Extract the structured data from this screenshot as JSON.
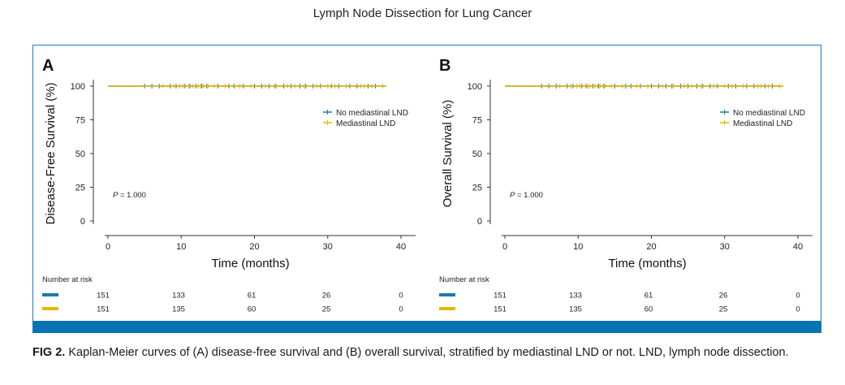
{
  "header": {
    "title": "Lymph Node Dissection for Lung Cancer"
  },
  "caption": {
    "label": "FIG 2.",
    "text": "Kaplan-Meier curves of (A) disease-free survival and (B) overall survival, stratified by mediastinal LND or not. LND, lymph node dissection."
  },
  "chart_data": [
    {
      "panel": "A",
      "type": "line",
      "xlabel": "Time (months)",
      "ylabel": "Disease-Free Survival (%)",
      "xlim": [
        0,
        40
      ],
      "ylim": [
        0,
        100
      ],
      "xticks": [
        0,
        10,
        20,
        30,
        40
      ],
      "yticks": [
        0,
        25,
        50,
        75,
        100
      ],
      "p_value": "= 1.000",
      "legend_position": "right",
      "series": [
        {
          "name": "No mediastinal LND",
          "color": "#1f77b4",
          "x": [
            0,
            38
          ],
          "y": [
            100,
            100
          ],
          "censor_times": [
            5,
            6,
            7,
            8.5,
            9.3,
            10.5,
            11.2,
            12,
            12.8,
            13.5,
            15,
            16.5,
            17.2,
            18.5,
            20,
            21,
            22,
            22.8,
            24,
            25,
            26.2,
            27,
            28,
            29,
            30.5,
            31.5,
            33,
            34,
            35.5,
            36.5
          ]
        },
        {
          "name": "Mediastinal LND",
          "color": "#e6b800",
          "x": [
            0,
            38
          ],
          "y": [
            100,
            100
          ],
          "censor_times": [
            7.5,
            9,
            9.8,
            10.2,
            11,
            11.6,
            12.3,
            12.7,
            13,
            13.7,
            14.5,
            16,
            18,
            19.5,
            21.5,
            23,
            24.5,
            25.5,
            26.8,
            28.5,
            30,
            31,
            32.5,
            34.5,
            35,
            36,
            37.5
          ]
        }
      ],
      "risk_table": {
        "header": "Number at risk",
        "times": [
          0,
          10,
          20,
          30,
          40
        ],
        "rows": [
          {
            "color": "#1f77b4",
            "values": [
              "151",
              "133",
              "61",
              "26",
              "0"
            ]
          },
          {
            "color": "#e6b800",
            "values": [
              "151",
              "135",
              "60",
              "25",
              "0"
            ]
          }
        ]
      }
    },
    {
      "panel": "B",
      "type": "line",
      "xlabel": "Time (months)",
      "ylabel": "Overall Survival (%)",
      "xlim": [
        0,
        40
      ],
      "ylim": [
        0,
        100
      ],
      "xticks": [
        0,
        10,
        20,
        30,
        40
      ],
      "yticks": [
        0,
        25,
        50,
        75,
        100
      ],
      "p_value": "= 1.000",
      "legend_position": "right",
      "series": [
        {
          "name": "No mediastinal LND",
          "color": "#1f77b4",
          "x": [
            0,
            38
          ],
          "y": [
            100,
            100
          ],
          "censor_times": [
            5,
            6,
            7,
            8.5,
            9.3,
            10.5,
            11.2,
            12,
            12.8,
            13.5,
            15,
            16.5,
            17.2,
            18.5,
            20,
            21,
            22,
            22.8,
            24,
            25,
            26.2,
            27,
            28,
            29,
            30.5,
            31.5,
            33,
            34,
            35.5,
            36.5
          ]
        },
        {
          "name": "Mediastinal LND",
          "color": "#e6b800",
          "x": [
            0,
            38
          ],
          "y": [
            100,
            100
          ],
          "censor_times": [
            7.5,
            9,
            9.8,
            10.2,
            11,
            11.6,
            12.3,
            12.7,
            13,
            13.7,
            14.5,
            16,
            18,
            19.5,
            21.5,
            23,
            24.5,
            25.5,
            26.8,
            28.5,
            30,
            31,
            32.5,
            34.5,
            35,
            36,
            37.5
          ]
        }
      ],
      "risk_table": {
        "header": "Number at risk",
        "times": [
          0,
          10,
          20,
          30,
          40
        ],
        "rows": [
          {
            "color": "#1f77b4",
            "values": [
              "151",
              "133",
              "61",
              "26",
              "0"
            ]
          },
          {
            "color": "#e6b800",
            "values": [
              "151",
              "135",
              "60",
              "25",
              "0"
            ]
          }
        ]
      }
    }
  ]
}
